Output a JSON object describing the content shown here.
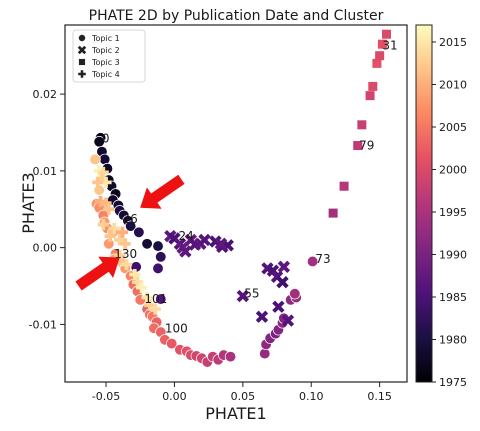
{
  "chart_data": {
    "type": "scatter",
    "title": "PHATE 2D by Publication Date and Cluster",
    "xlabel": "PHATE1",
    "ylabel": "PHATE3",
    "xlim": [
      -0.08,
      0.17
    ],
    "ylim": [
      -0.0175,
      0.029
    ],
    "xticks": [
      -0.05,
      0.0,
      0.05,
      0.1,
      0.15
    ],
    "xtick_labels": [
      "-0.05",
      "0.00",
      "0.05",
      "0.10",
      "0.15"
    ],
    "yticks": [
      -0.01,
      0.0,
      0.01,
      0.02
    ],
    "ytick_labels": [
      "-0.01",
      "0.00",
      "0.01",
      "0.02"
    ],
    "grid": false,
    "legend_placement": "top-left",
    "colorbar": {
      "colormap": "magma",
      "min": 1975,
      "max": 2017,
      "ticks": [
        1975,
        1980,
        1985,
        1990,
        1995,
        2000,
        2005,
        2010,
        2015
      ],
      "tick_labels": [
        "1975",
        "1980",
        "1985",
        "1990",
        "1995",
        "2000",
        "2005",
        "2010",
        "2015"
      ]
    },
    "series": [
      {
        "name": "Topic 1",
        "marker": "circle",
        "points": [
          [
            -0.054,
            0.0143,
            1976
          ],
          [
            -0.055,
            0.0138,
            1977
          ],
          [
            -0.053,
            0.0125,
            1978
          ],
          [
            -0.051,
            0.0115,
            1979
          ],
          [
            -0.049,
            0.0103,
            1978
          ],
          [
            -0.048,
            0.0088,
            1977
          ],
          [
            -0.046,
            0.008,
            1978
          ],
          [
            -0.043,
            0.007,
            1977
          ],
          [
            -0.045,
            0.0062,
            1978
          ],
          [
            -0.041,
            0.0055,
            1979
          ],
          [
            -0.04,
            0.0048,
            1980
          ],
          [
            -0.037,
            0.0042,
            1979
          ],
          [
            -0.034,
            0.0035,
            1978
          ],
          [
            -0.032,
            0.0028,
            1980
          ],
          [
            -0.026,
            0.002,
            1981
          ],
          [
            -0.02,
            0.0005,
            1979
          ],
          [
            -0.012,
            0.0002,
            1980
          ],
          [
            -0.01,
            -0.0012,
            1982
          ],
          [
            -0.012,
            -0.0027,
            1984
          ],
          [
            -0.028,
            -0.0025,
            1984
          ],
          [
            -0.01,
            -0.0067,
            1986
          ],
          [
            -0.058,
            0.0115,
            2012
          ],
          [
            -0.055,
            0.0075,
            2012
          ],
          [
            -0.057,
            0.0057,
            2008
          ],
          [
            -0.055,
            0.0052,
            2007
          ],
          [
            -0.052,
            0.0042,
            2006
          ],
          [
            -0.051,
            0.0033,
            2008
          ],
          [
            -0.049,
            0.0025,
            2007
          ],
          [
            -0.045,
            0.002,
            2009
          ],
          [
            -0.048,
            0.0005,
            2008
          ],
          [
            -0.043,
            -0.0008,
            2006
          ],
          [
            -0.044,
            -0.0015,
            2009
          ],
          [
            -0.038,
            -0.002,
            2012
          ],
          [
            -0.036,
            -0.0027,
            2008
          ],
          [
            -0.032,
            -0.0037,
            2006
          ],
          [
            -0.03,
            -0.0048,
            2004
          ],
          [
            -0.027,
            -0.0057,
            2004
          ],
          [
            -0.025,
            -0.0068,
            2005
          ],
          [
            -0.02,
            -0.008,
            2003
          ],
          [
            -0.018,
            -0.0087,
            2004
          ],
          [
            -0.016,
            -0.009,
            2005
          ],
          [
            -0.013,
            -0.0097,
            2003
          ],
          [
            -0.015,
            -0.0105,
            2004
          ],
          [
            -0.01,
            -0.011,
            2003
          ],
          [
            -0.007,
            -0.012,
            2003
          ],
          [
            -0.002,
            -0.0125,
            2002
          ],
          [
            0.004,
            -0.0133,
            2001
          ],
          [
            0.009,
            -0.0135,
            2001
          ],
          [
            0.012,
            -0.014,
            2000
          ],
          [
            0.016,
            -0.0141,
            1999
          ],
          [
            0.02,
            -0.0144,
            1999
          ],
          [
            0.024,
            -0.0149,
            1998
          ],
          [
            0.028,
            -0.0142,
            1998
          ],
          [
            0.032,
            -0.0146,
            1997
          ],
          [
            0.036,
            -0.014,
            1996
          ],
          [
            0.041,
            -0.0142,
            1995
          ],
          [
            0.066,
            -0.0138,
            1993
          ],
          [
            0.067,
            -0.0126,
            1992
          ],
          [
            0.07,
            -0.0118,
            1991
          ],
          [
            0.074,
            -0.0112,
            1990
          ],
          [
            0.076,
            -0.0107,
            1991
          ],
          [
            0.079,
            -0.0098,
            1992
          ],
          [
            0.08,
            -0.0092,
            1991
          ],
          [
            0.085,
            -0.0068,
            1992
          ],
          [
            0.089,
            -0.0065,
            1993
          ],
          [
            0.088,
            -0.006,
            1994
          ],
          [
            0.101,
            -0.0018,
            1994
          ]
        ]
      },
      {
        "name": "Topic 2",
        "marker": "x",
        "points": [
          [
            -0.003,
            0.0015,
            1987
          ],
          [
            0.0,
            0.0012,
            1985
          ],
          [
            0.004,
            0.0005,
            1986
          ],
          [
            0.006,
            0.0,
            1988
          ],
          [
            0.008,
            -0.0005,
            1987
          ],
          [
            0.012,
            0.001,
            1988
          ],
          [
            0.015,
            0.0004,
            1986
          ],
          [
            0.019,
            0.0005,
            1987
          ],
          [
            0.022,
            0.001,
            1986
          ],
          [
            0.03,
            0.0008,
            1985
          ],
          [
            0.035,
            0.0001,
            1986
          ],
          [
            0.039,
            0.0003,
            1985
          ],
          [
            0.034,
            0.0005,
            1987
          ],
          [
            0.05,
            -0.0063,
            1986
          ],
          [
            0.064,
            -0.009,
            1985
          ],
          [
            0.068,
            -0.0027,
            1986
          ],
          [
            0.072,
            -0.003,
            1985
          ],
          [
            0.075,
            -0.0038,
            1986
          ],
          [
            0.08,
            -0.0025,
            1987
          ],
          [
            0.076,
            -0.0077,
            1985
          ],
          [
            0.079,
            -0.0045,
            1984
          ],
          [
            0.083,
            -0.0095,
            1986
          ]
        ]
      },
      {
        "name": "Topic 3",
        "marker": "square",
        "points": [
          [
            0.116,
            0.0045,
            1994
          ],
          [
            0.124,
            0.008,
            1996
          ],
          [
            0.134,
            0.0133,
            1997
          ],
          [
            0.137,
            0.016,
            1998
          ],
          [
            0.143,
            0.0198,
            1999
          ],
          [
            0.145,
            0.021,
            2000
          ],
          [
            0.148,
            0.024,
            2001
          ],
          [
            0.15,
            0.025,
            2000
          ],
          [
            0.152,
            0.0265,
            2001
          ],
          [
            0.155,
            0.0278,
            2000
          ]
        ]
      },
      {
        "name": "Topic 4",
        "marker": "plus",
        "points": [
          [
            -0.055,
            0.01,
            2016
          ],
          [
            -0.052,
            0.0098,
            2014
          ],
          [
            -0.053,
            0.009,
            2013
          ],
          [
            -0.05,
            0.0085,
            2015
          ],
          [
            -0.056,
            0.0085,
            2012
          ],
          [
            -0.054,
            0.006,
            2010
          ],
          [
            -0.05,
            0.0058,
            2011
          ],
          [
            -0.048,
            0.005,
            2012
          ],
          [
            -0.052,
            0.003,
            2013
          ],
          [
            -0.044,
            0.0025,
            2014
          ],
          [
            -0.047,
            0.0015,
            2012
          ],
          [
            -0.04,
            0.001,
            2013
          ],
          [
            -0.038,
            0.002,
            2010
          ],
          [
            -0.036,
            0.0005,
            2012
          ],
          [
            -0.04,
            -0.001,
            2013
          ],
          [
            -0.035,
            -0.0022,
            2014
          ],
          [
            -0.029,
            -0.0035,
            2015
          ],
          [
            -0.027,
            -0.0045,
            2014
          ],
          [
            -0.024,
            -0.0052,
            2016
          ],
          [
            -0.02,
            -0.0065,
            2015
          ],
          [
            -0.018,
            -0.0075,
            2013
          ],
          [
            -0.014,
            -0.008,
            2014
          ]
        ]
      }
    ],
    "annotations": [
      {
        "text": "0",
        "x": -0.053,
        "y": 0.0142
      },
      {
        "text": "26",
        "x": -0.038,
        "y": 0.0037
      },
      {
        "text": "24",
        "x": 0.003,
        "y": 0.0015
      },
      {
        "text": "130",
        "x": -0.044,
        "y": -0.0008
      },
      {
        "text": "101",
        "x": -0.022,
        "y": -0.0067
      },
      {
        "text": "100",
        "x": -0.007,
        "y": -0.0105
      },
      {
        "text": "55",
        "x": 0.051,
        "y": -0.006
      },
      {
        "text": "73",
        "x": 0.103,
        "y": -0.0015
      },
      {
        "text": "79",
        "x": 0.135,
        "y": 0.0133
      },
      {
        "text": "31",
        "x": 0.152,
        "y": 0.0263
      }
    ],
    "highlight_arrows": [
      {
        "color": "#ee1111",
        "direction": "pointing-down-left",
        "target_x": -0.025,
        "target_y": 0.0052
      },
      {
        "color": "#ee1111",
        "direction": "pointing-up-right",
        "target_x": -0.04,
        "target_y": -0.0013
      }
    ]
  }
}
